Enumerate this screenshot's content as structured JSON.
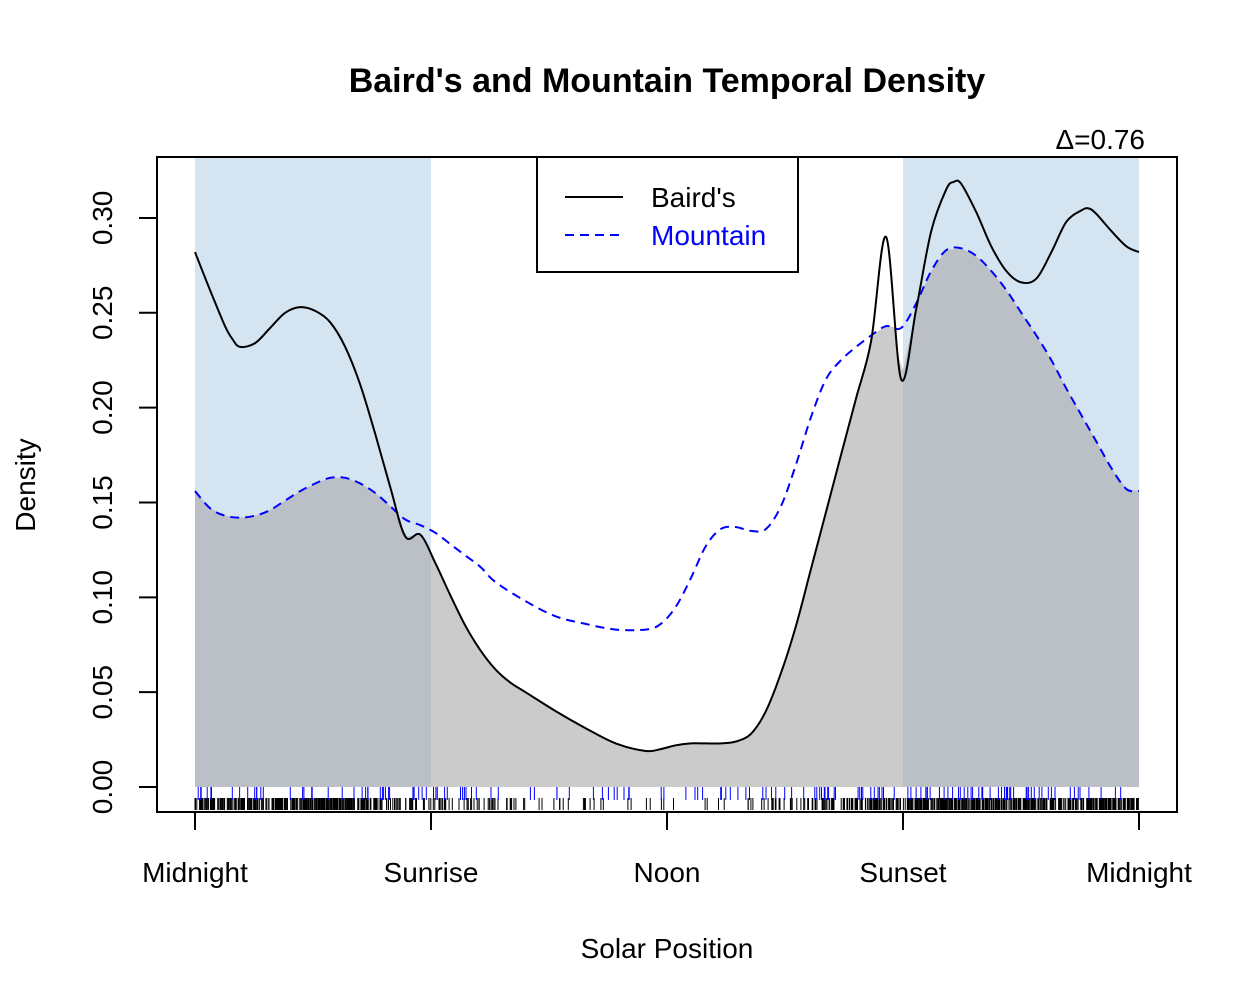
{
  "chart_data": {
    "type": "area",
    "title": "Baird's and Mountain Temporal Density",
    "annotation": "Δ=0.76",
    "xlabel": "Solar Position",
    "ylabel": "Density",
    "xlim": [
      0,
      6.2832
    ],
    "ylim": [
      0,
      0.32
    ],
    "x_ticks": [
      {
        "value": 0,
        "label": "Midnight"
      },
      {
        "value": 1.5708,
        "label": "Sunrise"
      },
      {
        "value": 3.1416,
        "label": "Noon"
      },
      {
        "value": 4.7124,
        "label": "Sunset"
      },
      {
        "value": 6.2832,
        "label": "Midnight"
      }
    ],
    "y_ticks": [
      0.0,
      0.05,
      0.1,
      0.15,
      0.2,
      0.25,
      0.3
    ],
    "y_tick_labels": [
      "0.00",
      "0.05",
      "0.10",
      "0.15",
      "0.20",
      "0.25",
      "0.30"
    ],
    "night_shading": [
      [
        0,
        1.5708
      ],
      [
        4.7124,
        6.2832
      ]
    ],
    "legend": {
      "position": "top-center"
    },
    "series": [
      {
        "name": "Baird's",
        "style": "solid",
        "color": "#000000",
        "x": [
          0,
          0.1,
          0.2,
          0.25,
          0.3,
          0.4,
          0.5,
          0.6,
          0.7,
          0.8,
          0.9,
          1.0,
          1.1,
          1.2,
          1.3,
          1.4,
          1.5,
          1.6,
          1.7,
          1.8,
          1.9,
          2.0,
          2.1,
          2.2,
          2.4,
          2.6,
          2.8,
          3.0,
          3.1,
          3.2,
          3.3,
          3.4,
          3.5,
          3.6,
          3.7,
          3.8,
          3.9,
          4.0,
          4.1,
          4.2,
          4.3,
          4.4,
          4.5,
          4.6,
          4.7,
          4.8,
          4.9,
          5.0,
          5.05,
          5.1,
          5.2,
          5.3,
          5.4,
          5.5,
          5.6,
          5.7,
          5.8,
          5.9,
          5.95,
          6.0,
          6.1,
          6.2,
          6.2832
        ],
        "y": [
          0.282,
          0.262,
          0.243,
          0.236,
          0.232,
          0.234,
          0.242,
          0.25,
          0.253,
          0.251,
          0.245,
          0.232,
          0.212,
          0.186,
          0.158,
          0.132,
          0.133,
          0.118,
          0.101,
          0.085,
          0.072,
          0.062,
          0.055,
          0.05,
          0.04,
          0.031,
          0.023,
          0.019,
          0.02,
          0.022,
          0.023,
          0.023,
          0.023,
          0.024,
          0.028,
          0.04,
          0.06,
          0.085,
          0.115,
          0.145,
          0.175,
          0.205,
          0.235,
          0.29,
          0.215,
          0.252,
          0.293,
          0.315,
          0.319,
          0.318,
          0.303,
          0.285,
          0.272,
          0.266,
          0.268,
          0.282,
          0.298,
          0.304,
          0.305,
          0.302,
          0.293,
          0.285,
          0.282
        ]
      },
      {
        "name": "Mountain",
        "style": "dashed",
        "color": "#0000ff",
        "x": [
          0,
          0.1,
          0.2,
          0.3,
          0.4,
          0.5,
          0.6,
          0.7,
          0.8,
          0.9,
          1.0,
          1.1,
          1.2,
          1.3,
          1.4,
          1.5,
          1.6,
          1.7,
          1.8,
          1.9,
          2.0,
          2.2,
          2.4,
          2.6,
          2.8,
          3.0,
          3.1,
          3.2,
          3.3,
          3.4,
          3.5,
          3.6,
          3.7,
          3.8,
          3.9,
          4.0,
          4.1,
          4.2,
          4.3,
          4.4,
          4.5,
          4.6,
          4.7,
          4.8,
          4.9,
          5.0,
          5.1,
          5.2,
          5.3,
          5.4,
          5.5,
          5.6,
          5.7,
          5.8,
          5.9,
          6.0,
          6.1,
          6.2,
          6.2832
        ],
        "y": [
          0.156,
          0.147,
          0.143,
          0.142,
          0.143,
          0.146,
          0.151,
          0.156,
          0.16,
          0.163,
          0.163,
          0.16,
          0.155,
          0.148,
          0.141,
          0.138,
          0.134,
          0.128,
          0.122,
          0.116,
          0.108,
          0.098,
          0.09,
          0.086,
          0.083,
          0.083,
          0.086,
          0.095,
          0.11,
          0.127,
          0.136,
          0.137,
          0.135,
          0.136,
          0.148,
          0.17,
          0.195,
          0.215,
          0.225,
          0.232,
          0.238,
          0.243,
          0.242,
          0.255,
          0.272,
          0.283,
          0.284,
          0.28,
          0.272,
          0.262,
          0.25,
          0.238,
          0.225,
          0.21,
          0.196,
          0.182,
          0.168,
          0.157,
          0.156
        ]
      }
    ],
    "rug": {
      "bairds_count": 900,
      "mountain_count": 160
    }
  }
}
